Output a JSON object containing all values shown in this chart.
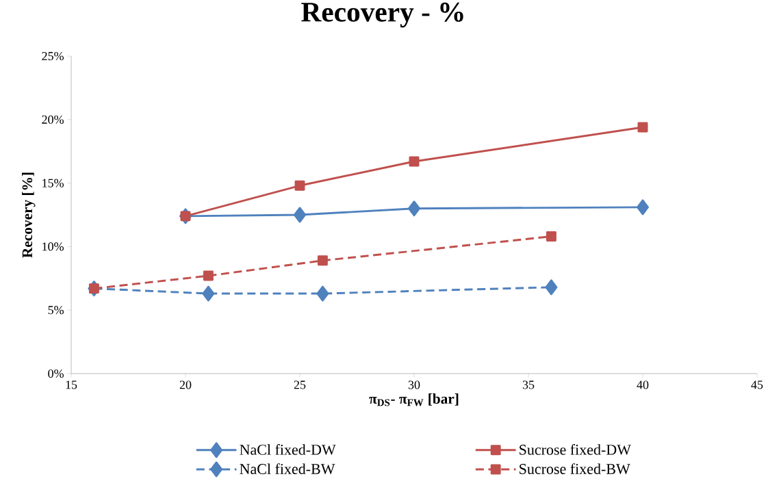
{
  "chart_data": {
    "type": "line",
    "title": "Recovery - %",
    "xlabel": "π$_{DS}$- π$_{FW}$ [bar]",
    "ylabel": "Recovery [%]",
    "xlim": [
      15,
      45
    ],
    "xticks": [
      15,
      20,
      25,
      30,
      35,
      40,
      45
    ],
    "ylim": [
      0,
      25
    ],
    "yticks": [
      {
        "value": 0,
        "label": "0%"
      },
      {
        "value": 5,
        "label": "5%"
      },
      {
        "value": 10,
        "label": "10%"
      },
      {
        "value": 15,
        "label": "15%"
      },
      {
        "value": 20,
        "label": "20%"
      },
      {
        "value": 25,
        "label": "25%"
      }
    ],
    "grid": false,
    "legend": "bottom",
    "series": [
      {
        "name": "NaCl fixed-DW",
        "color": "#4f81bd",
        "marker": "diamond",
        "line_style": "solid",
        "x": [
          20,
          25,
          30,
          40
        ],
        "values": [
          12.4,
          12.5,
          13.0,
          13.1
        ]
      },
      {
        "name": "Sucrose fixed-DW",
        "color": "#c0504d",
        "marker": "square",
        "line_style": "solid",
        "x": [
          20,
          25,
          30,
          40
        ],
        "values": [
          12.4,
          14.8,
          16.7,
          19.4
        ]
      },
      {
        "name": "NaCl fixed-BW",
        "color": "#4f81bd",
        "marker": "diamond",
        "line_style": "dashed",
        "x": [
          16,
          21,
          26,
          36
        ],
        "values": [
          6.7,
          6.3,
          6.3,
          6.8
        ]
      },
      {
        "name": "Sucrose fixed-BW",
        "color": "#c0504d",
        "marker": "square",
        "line_style": "dashed",
        "x": [
          16,
          21,
          26,
          36
        ],
        "values": [
          6.7,
          7.7,
          8.9,
          10.8
        ]
      }
    ]
  }
}
